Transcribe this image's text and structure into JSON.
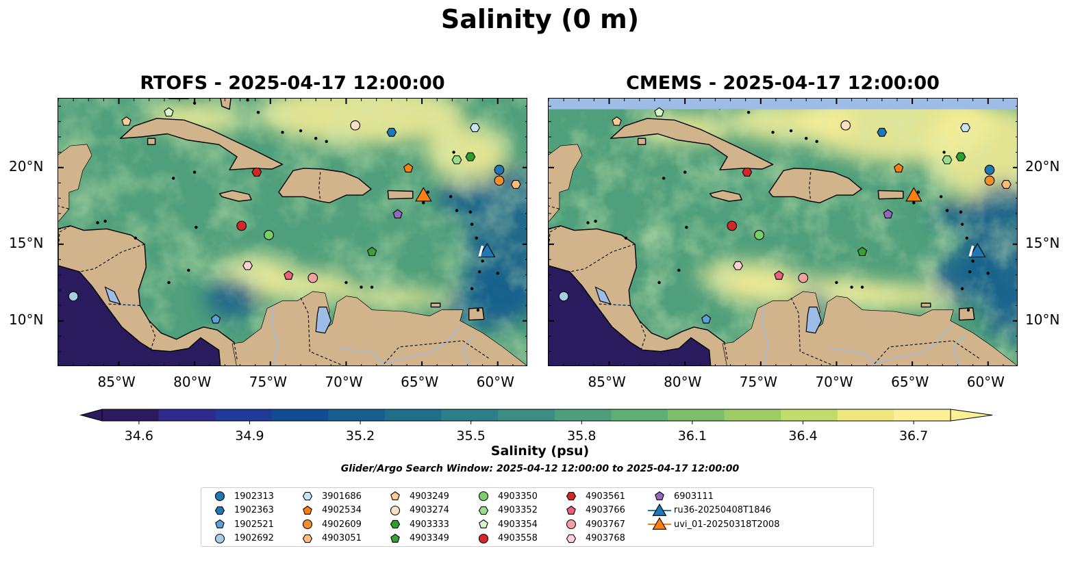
{
  "suptitle": "Salinity (0 m)",
  "panels": [
    {
      "title": "RTOFS - 2025-04-17 12:00:00",
      "model": "rtofs"
    },
    {
      "title": "CMEMS - 2025-04-17 12:00:00",
      "model": "cmems"
    }
  ],
  "lon_ticks": [
    "85°W",
    "80°W",
    "75°W",
    "70°W",
    "65°W",
    "60°W"
  ],
  "lat_ticks": [
    "20°N",
    "15°N",
    "10°N"
  ],
  "colorbar": {
    "label": "Salinity (psu)",
    "min": 34.5,
    "max": 36.8,
    "ticks": [
      "34.6",
      "34.9",
      "35.2",
      "35.5",
      "35.8",
      "36.1",
      "36.4",
      "36.7"
    ],
    "colors": [
      "#2a1b5f",
      "#2d2a8c",
      "#203a9a",
      "#134c95",
      "#165f8e",
      "#1f6f8a",
      "#2b7f88",
      "#3a8e84",
      "#4d9e7d",
      "#60ae74",
      "#7bbf6a",
      "#9ccc63",
      "#c2dc6c",
      "#ede77e",
      "#fbf096"
    ]
  },
  "subtitle": "Glider/Argo Search Window: 2025-04-12 12:00:00 to 2025-04-17 12:00:00",
  "map_extent": {
    "lon": [
      -89,
      -58
    ],
    "lat": [
      7,
      24.5
    ]
  },
  "colors": {
    "land": "#d2b48c",
    "ocean_deep": "#2a1b5f",
    "ocean_mid": "#4f9f7c",
    "ocean_fresh": "#fbf096",
    "no_data": "#9dbce6"
  },
  "platforms": [
    {
      "id": "1902313",
      "marker": "circle",
      "color": "#1f77b4",
      "lon": -59.9,
      "lat": 19.85
    },
    {
      "id": "1902363",
      "marker": "hexagon",
      "color": "#1f77b4",
      "lon": -67.0,
      "lat": 22.3
    },
    {
      "id": "1902521",
      "marker": "pentagon",
      "color": "#5ea1d8",
      "lon": -78.6,
      "lat": 10.1
    },
    {
      "id": "1902692",
      "marker": "circle",
      "color": "#a6cee3",
      "lon": -88.0,
      "lat": 11.6
    },
    {
      "id": "3901686",
      "marker": "hexagon",
      "color": "#c6e5f5",
      "lon": -61.5,
      "lat": 22.6
    },
    {
      "id": "4902534",
      "marker": "pentagon",
      "color": "#ff7f0e",
      "lon": -65.9,
      "lat": 19.95
    },
    {
      "id": "4902609",
      "marker": "circle",
      "color": "#f28e2b",
      "lon": -59.9,
      "lat": 19.15
    },
    {
      "id": "4903051",
      "marker": "hexagon",
      "color": "#ffbb78",
      "lon": -58.8,
      "lat": 18.9
    },
    {
      "id": "4903249",
      "marker": "pentagon",
      "color": "#ffcc99",
      "lon": -84.5,
      "lat": 23.0
    },
    {
      "id": "4903274",
      "marker": "circle",
      "color": "#ffe0c2",
      "lon": -69.4,
      "lat": 22.75
    },
    {
      "id": "4903333",
      "marker": "hexagon",
      "color": "#2ca02c",
      "lon": -61.8,
      "lat": 20.7
    },
    {
      "id": "4903349",
      "marker": "pentagon",
      "color": "#3aa03a",
      "lon": -68.3,
      "lat": 14.5
    },
    {
      "id": "4903350",
      "marker": "circle",
      "color": "#7bcf6b",
      "lon": -75.1,
      "lat": 15.6
    },
    {
      "id": "4903352",
      "marker": "hexagon",
      "color": "#98df8a",
      "lon": -62.7,
      "lat": 20.5
    },
    {
      "id": "4903354",
      "marker": "pentagon",
      "color": "#d9f7c9",
      "lon": -81.7,
      "lat": 23.6
    },
    {
      "id": "4903558",
      "marker": "circle",
      "color": "#d62728",
      "lon": -76.9,
      "lat": 16.2
    },
    {
      "id": "4903561",
      "marker": "hexagon",
      "color": "#d62728",
      "lon": -75.9,
      "lat": 19.7
    },
    {
      "id": "4903766",
      "marker": "pentagon",
      "color": "#e8607a",
      "lon": -73.8,
      "lat": 12.95
    },
    {
      "id": "4903767",
      "marker": "circle",
      "color": "#f4a0a0",
      "lon": -72.2,
      "lat": 12.8
    },
    {
      "id": "4903768",
      "marker": "hexagon",
      "color": "#fcd0d4",
      "lon": -76.5,
      "lat": 13.6
    },
    {
      "id": "6903111",
      "marker": "pentagon",
      "color": "#9467bd",
      "lon": -66.6,
      "lat": 16.95
    },
    {
      "id": "ru36-20250408T1846",
      "marker": "triangle",
      "color": "#1f77b4",
      "lon": -60.7,
      "lat": 14.6
    },
    {
      "id": "uvi_01-20250318T2008",
      "marker": "triangle",
      "color": "#ff7f0e",
      "lon": -64.9,
      "lat": 18.25
    }
  ]
}
